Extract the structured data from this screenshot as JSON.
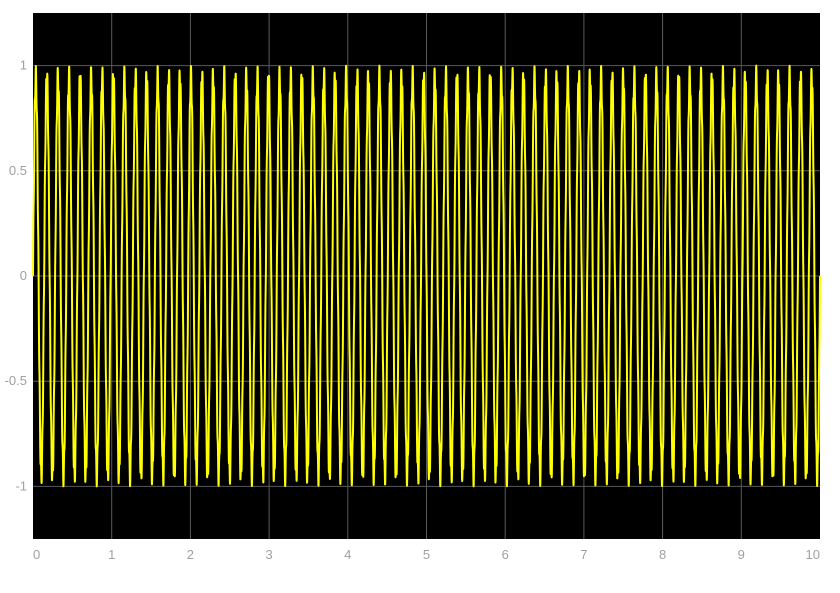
{
  "chart_data": {
    "type": "line",
    "title": "",
    "xlabel": "",
    "ylabel": "",
    "xlim": [
      0,
      10
    ],
    "ylim": [
      -1.25,
      1.25
    ],
    "grid": true,
    "legend": "none",
    "x_ticks": [
      "0",
      "1",
      "2",
      "3",
      "4",
      "5",
      "6",
      "7",
      "8",
      "9",
      "10"
    ],
    "y_ticks": [
      "1",
      "0.5",
      "0",
      "-0.5",
      "-1"
    ],
    "x_tick_values": [
      0,
      1,
      2,
      3,
      4,
      5,
      6,
      7,
      8,
      9,
      10
    ],
    "y_tick_values": [
      1,
      0.5,
      0,
      -0.5,
      -1
    ],
    "colors": {
      "background": "#000000",
      "grid": "#5a5a5a",
      "trace": "#ffff00",
      "tick_text": "#a0a0a0",
      "figure_bg": "#ffffff"
    },
    "series": [
      {
        "sampling": {
          "start": 0,
          "end": 10,
          "samples": 6000
        },
        "waveform": {
          "expression": "0.95*sin(2*pi*7.1*t) + 0.05*sin(2*pi*61.4*t)",
          "components": [
            {
              "amplitude": 0.95,
              "frequency_hz": 7.1,
              "phase": 0
            },
            {
              "amplitude": 0.05,
              "frequency_hz": 61.4,
              "phase": 0
            }
          ]
        }
      }
    ]
  }
}
